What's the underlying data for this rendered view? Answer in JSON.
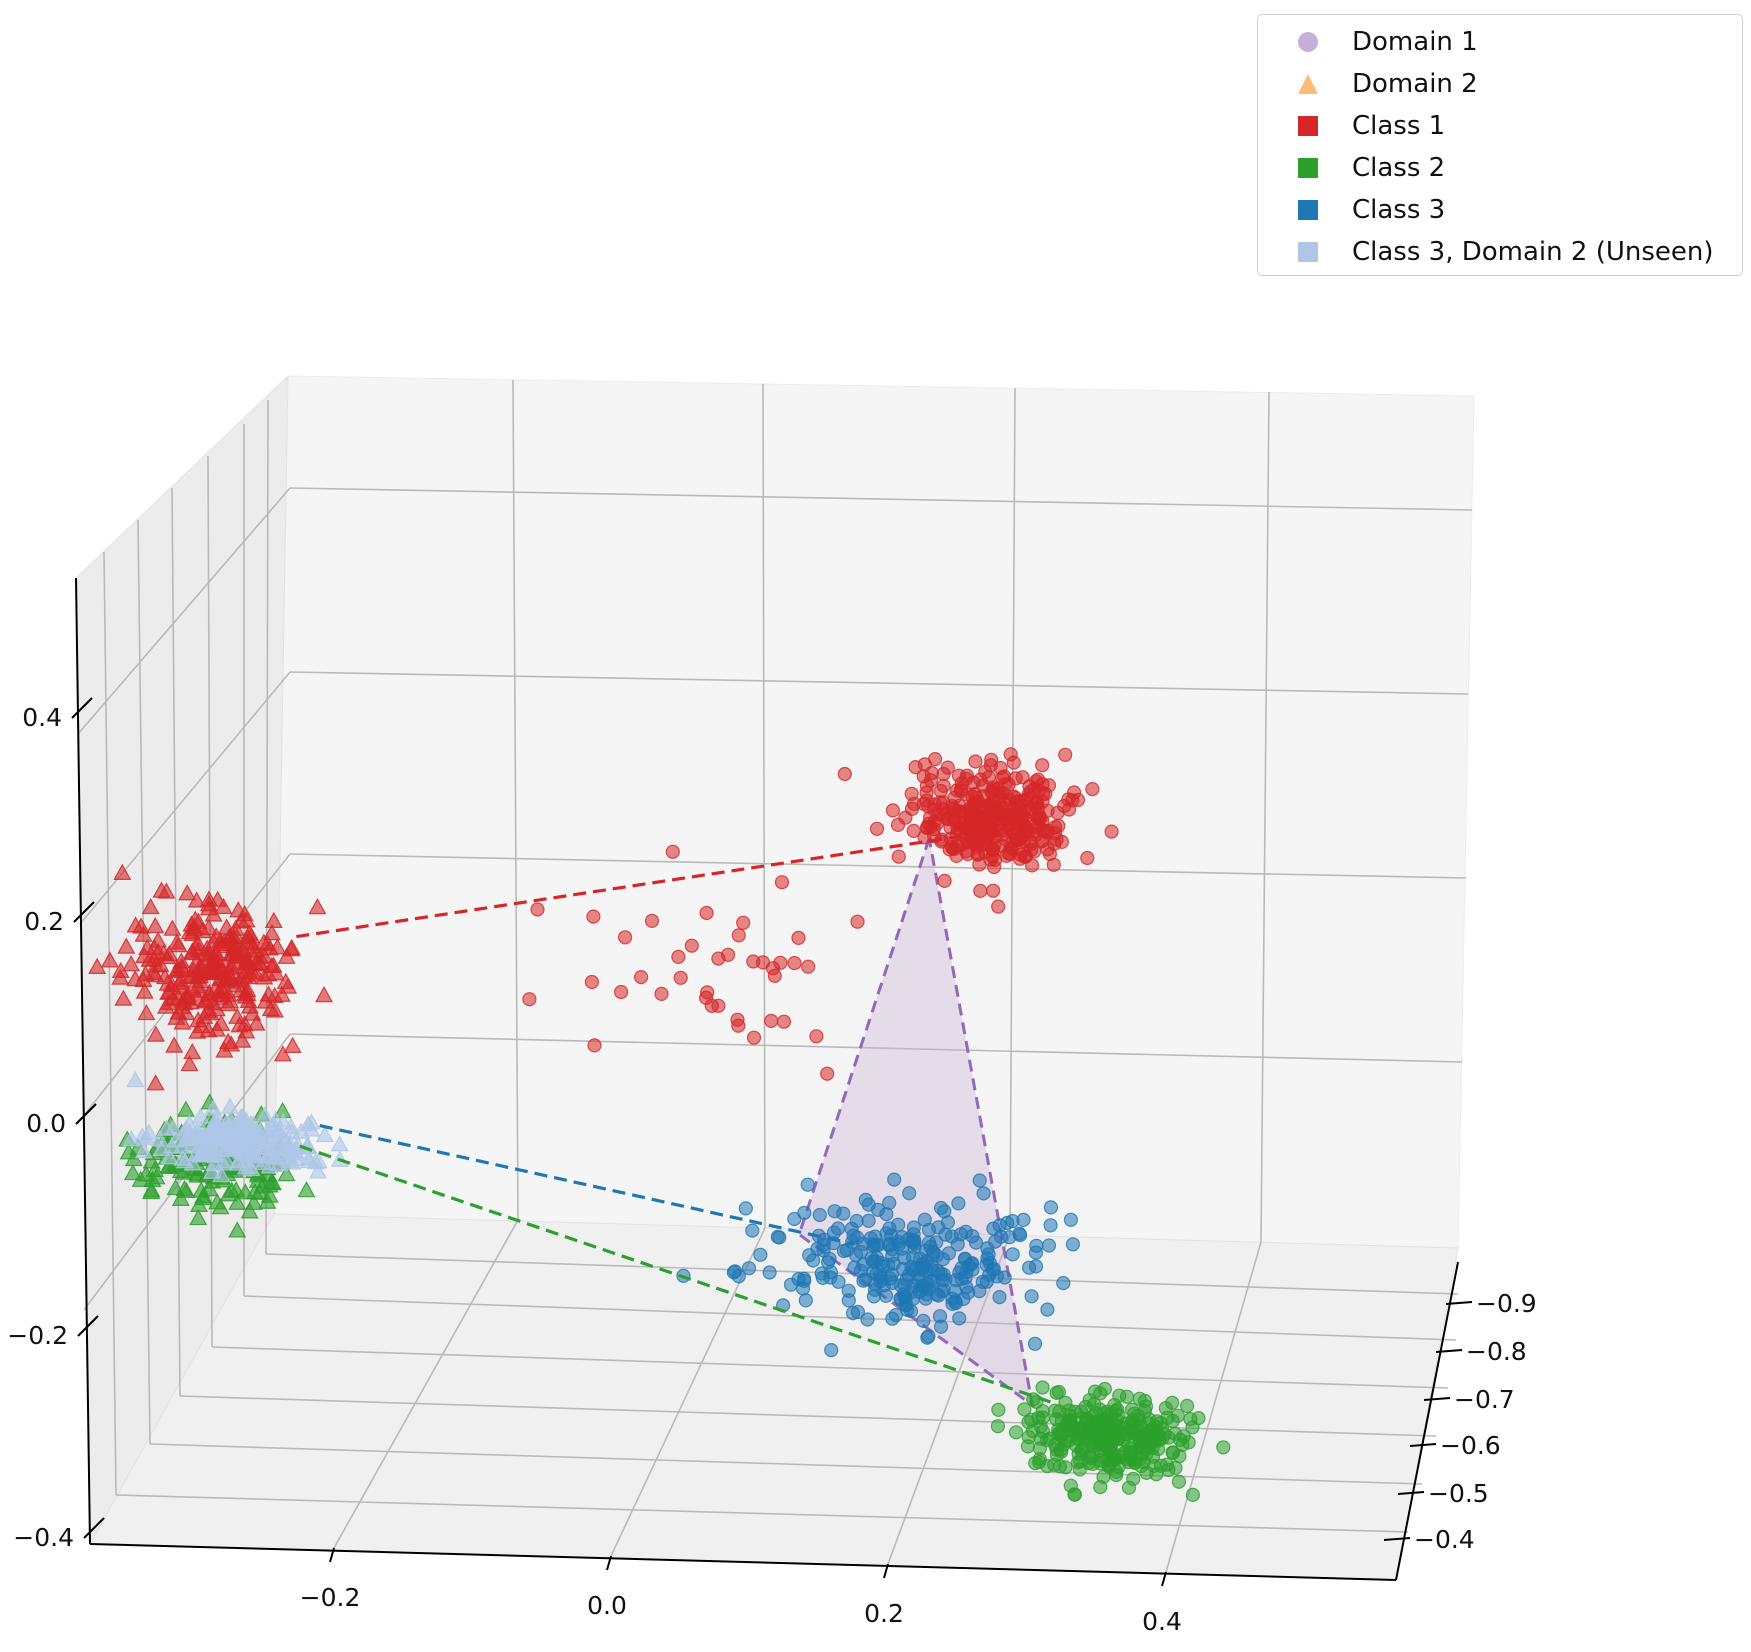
{
  "chart_data": {
    "type": "scatter",
    "projection": "3d",
    "title": "",
    "xlabel": "",
    "ylabel": "",
    "zlabel": "",
    "x_ticks": [
      "−0.2",
      "0.0",
      "0.2",
      "0.4"
    ],
    "y_ticks": [
      "−0.9",
      "−0.8",
      "−0.7",
      "−0.6",
      "−0.5",
      "−0.4"
    ],
    "z_ticks": [
      "−0.4",
      "−0.2",
      "0.0",
      "0.2",
      "0.4"
    ],
    "xlim": [
      -0.4,
      0.5
    ],
    "ylim": [
      -0.95,
      -0.4
    ],
    "zlim": [
      -0.45,
      0.5
    ],
    "grid": true,
    "legend_position": "top-right",
    "legend": [
      {
        "label": "Domain 1",
        "marker": "circle",
        "color": "#c5b0d5"
      },
      {
        "label": "Domain 2",
        "marker": "triangle",
        "color": "#ffbb78"
      },
      {
        "label": "Class 1",
        "marker": "square",
        "color": "#d62728"
      },
      {
        "label": "Class 2",
        "marker": "square",
        "color": "#2ca02c"
      },
      {
        "label": "Class 3",
        "marker": "square",
        "color": "#1f77b4"
      },
      {
        "label": "Class 3, Domain 2 (Unseen)",
        "marker": "square",
        "color": "#aec7e8"
      }
    ],
    "clusters": [
      {
        "series": "Class 1, Domain 1",
        "marker": "circle",
        "color": "#d62728",
        "center": [
          0.42,
          -0.92,
          0.38
        ],
        "spread": [
          0.05,
          0.05,
          0.05
        ],
        "count": 330
      },
      {
        "series": "Class 1, Domain 1 (outliers)",
        "marker": "circle",
        "color": "#d62728",
        "center": [
          0.18,
          -0.8,
          0.22
        ],
        "spread": [
          0.1,
          0.08,
          0.08
        ],
        "count": 40
      },
      {
        "series": "Class 2, Domain 1",
        "marker": "circle",
        "color": "#2ca02c",
        "center": [
          0.42,
          -0.62,
          -0.26
        ],
        "spread": [
          0.05,
          0.06,
          0.04
        ],
        "count": 300
      },
      {
        "series": "Class 3, Domain 1",
        "marker": "circle",
        "color": "#1f77b4",
        "center": [
          0.3,
          -0.7,
          -0.08
        ],
        "spread": [
          0.08,
          0.08,
          0.06
        ],
        "count": 260
      },
      {
        "series": "Class 1, Domain 2",
        "marker": "triangle",
        "color": "#d62728",
        "center": [
          -0.18,
          -0.78,
          0.22
        ],
        "spread": [
          0.05,
          0.08,
          0.07
        ],
        "count": 260
      },
      {
        "series": "Class 2, Domain 2",
        "marker": "triangle",
        "color": "#2ca02c",
        "center": [
          -0.2,
          -0.7,
          0.02
        ],
        "spread": [
          0.05,
          0.05,
          0.04
        ],
        "count": 150
      },
      {
        "series": "Class 3, Domain 2 (Unseen)",
        "marker": "triangle",
        "color": "#aec7e8",
        "center": [
          -0.18,
          -0.72,
          0.04
        ],
        "spread": [
          0.05,
          0.05,
          0.03
        ],
        "count": 200
      }
    ],
    "connector_lines": [
      {
        "series": "Class 1",
        "color": "#d62728",
        "from": [
          -0.12,
          -0.78,
          0.26
        ],
        "to": [
          0.4,
          -0.92,
          0.36
        ]
      },
      {
        "series": "Class 2",
        "color": "#2ca02c",
        "from": [
          -0.14,
          -0.7,
          0.04
        ],
        "to": [
          0.38,
          -0.62,
          -0.22
        ]
      },
      {
        "series": "Class 3",
        "color": "#1f77b4",
        "from": [
          -0.12,
          -0.72,
          0.06
        ],
        "to": [
          0.26,
          -0.7,
          -0.06
        ]
      }
    ],
    "domain_triangle": {
      "series": "Domain 1",
      "color": "#9467bd",
      "fill": "#c5b0d5",
      "vertices": [
        "Class 1 center",
        "Class 3 center",
        "Class 2 center"
      ]
    }
  }
}
